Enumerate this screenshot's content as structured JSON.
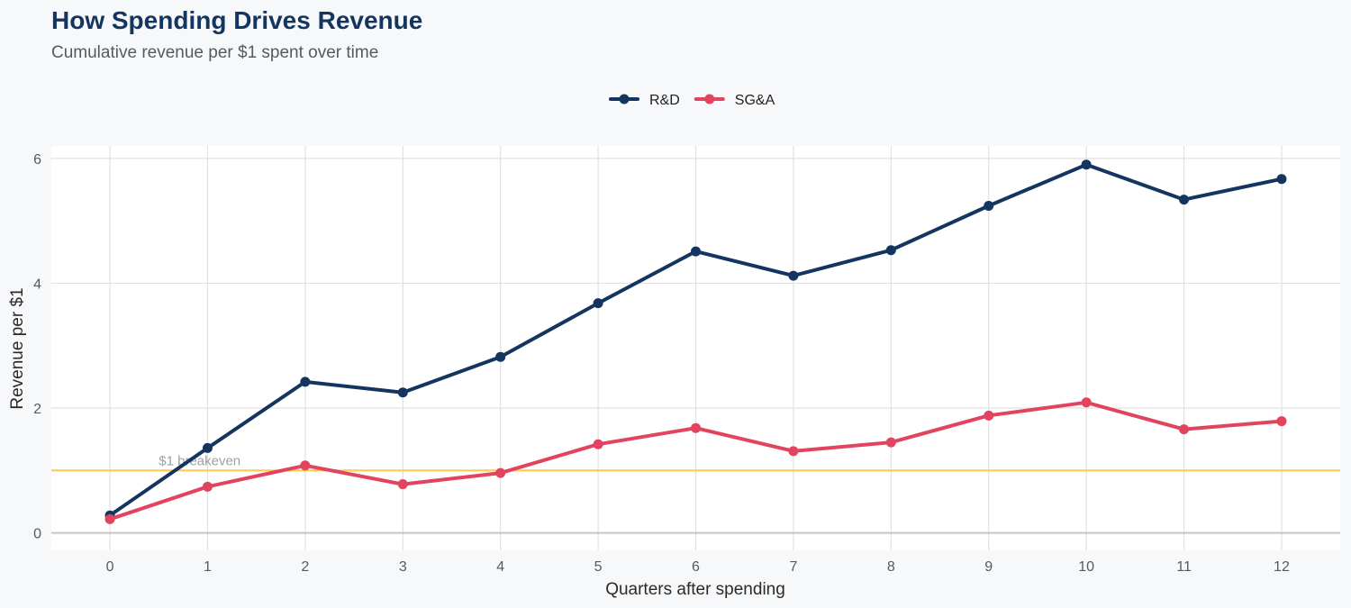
{
  "chart_data": {
    "type": "line",
    "title": "How Spending Drives Revenue",
    "subtitle": "Cumulative revenue per $1 spent over time",
    "xlabel": "Quarters after spending",
    "ylabel": "Revenue per $1",
    "x": [
      0,
      1,
      2,
      3,
      4,
      5,
      6,
      7,
      8,
      9,
      10,
      11,
      12
    ],
    "xlim": [
      -0.6,
      12.6
    ],
    "ylim": [
      -0.28,
      6.2
    ],
    "xticks": [
      0,
      1,
      2,
      3,
      4,
      5,
      6,
      7,
      8,
      9,
      10,
      11,
      12
    ],
    "yticks": [
      0,
      2,
      4,
      6
    ],
    "grid": true,
    "legend_position": "top-center",
    "series": [
      {
        "name": "R&D",
        "color": "#14355f",
        "values": [
          0.28,
          1.36,
          2.42,
          2.25,
          2.82,
          3.68,
          4.51,
          4.12,
          4.53,
          5.24,
          5.9,
          5.34,
          5.67
        ]
      },
      {
        "name": "SG&A",
        "color": "#e2445f",
        "values": [
          0.22,
          0.74,
          1.08,
          0.78,
          0.96,
          1.42,
          1.68,
          1.31,
          1.45,
          1.88,
          2.09,
          1.66,
          1.79
        ]
      }
    ],
    "reference_line": {
      "y": 1,
      "label": "$1 breakeven",
      "color": "#ffc94d"
    }
  }
}
